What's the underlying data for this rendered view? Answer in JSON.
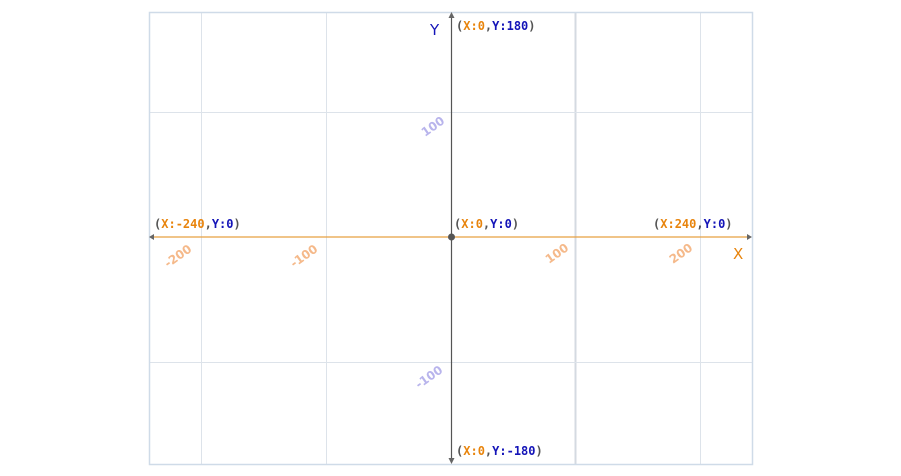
{
  "axes": {
    "x_label": "X",
    "y_label": "Y",
    "x_range": [
      -240,
      240
    ],
    "y_range": [
      -180,
      180
    ],
    "x_ticks": [
      "-200",
      "-100",
      "100",
      "200"
    ],
    "y_ticks": [
      "100",
      "-100"
    ]
  },
  "points": {
    "top": {
      "open": "(",
      "xk": "X:",
      "xv": "0",
      "sep": ",",
      "yk": "Y:",
      "yv": "180",
      "close": ")"
    },
    "left": {
      "open": "(",
      "xk": "X:",
      "xv": "-240",
      "sep": ",",
      "yk": "Y:",
      "yv": "0",
      "close": ")"
    },
    "origin": {
      "open": "(",
      "xk": "X:",
      "xv": "0",
      "sep": ",",
      "yk": "Y:",
      "yv": "0",
      "close": ")"
    },
    "right": {
      "open": "(",
      "xk": "X:",
      "xv": "240",
      "sep": ",",
      "yk": "Y:",
      "yv": "0",
      "close": ")"
    },
    "bottom": {
      "open": "(",
      "xk": "X:",
      "xv": "0",
      "sep": ",",
      "yk": "Y:",
      "yv": "-180",
      "close": ")"
    }
  },
  "colors": {
    "x_axis": "#e8a040",
    "y_axis": "#555555",
    "grid": "#dde3ea",
    "border": "#cfdbe8",
    "x_text": "#e8840c",
    "y_text": "#1414b8"
  }
}
